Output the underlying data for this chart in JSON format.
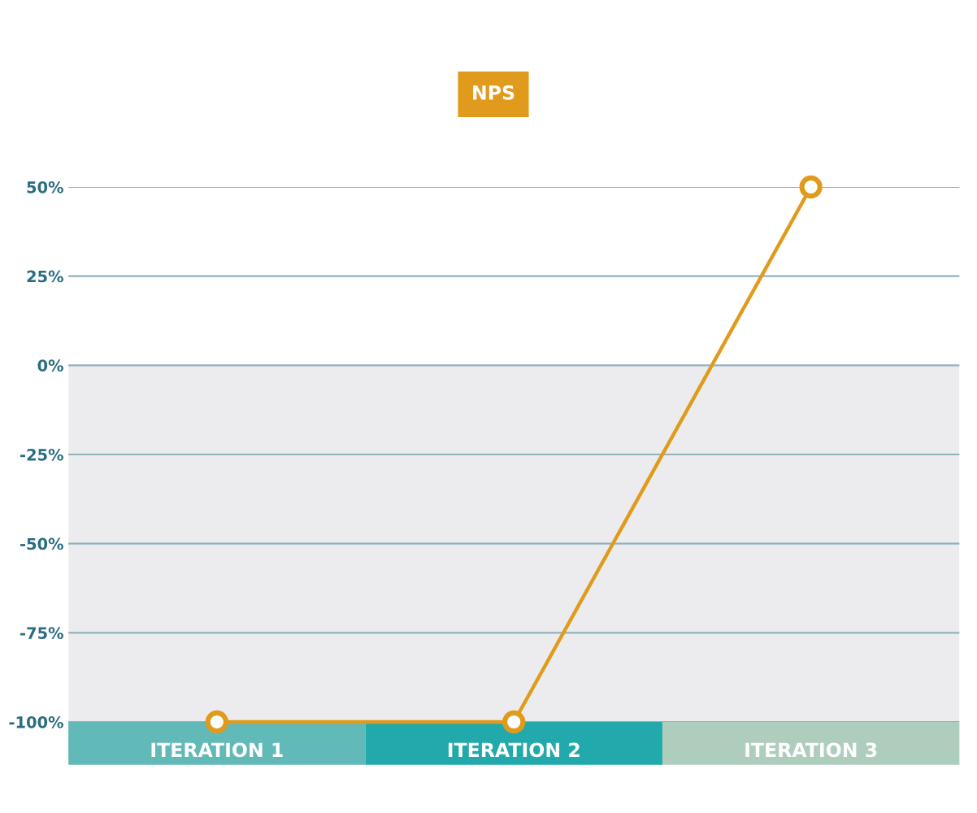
{
  "chart_data": {
    "type": "line",
    "categories": [
      "ITERATION 1",
      "ITERATION 2",
      "ITERATION 3"
    ],
    "series": [
      {
        "name": "NPS",
        "color": "#e09b1c",
        "values": [
          -100,
          -100,
          50
        ]
      }
    ],
    "ylim": [
      -100,
      50
    ],
    "yticks": [
      {
        "value": -100,
        "label": "-100%"
      },
      {
        "value": -75,
        "label": "-75%"
      },
      {
        "value": -50,
        "label": "-50%"
      },
      {
        "value": -25,
        "label": "-25%"
      },
      {
        "value": 0,
        "label": "0%"
      },
      {
        "value": 25,
        "label": "25%"
      },
      {
        "value": 50,
        "label": "50%"
      }
    ],
    "bands": [
      {
        "axis": "y",
        "from": -100,
        "to": 0,
        "color": "#ececee"
      }
    ],
    "grid": "y",
    "legend": "top",
    "marker": "circle",
    "line_style": "solid"
  }
}
